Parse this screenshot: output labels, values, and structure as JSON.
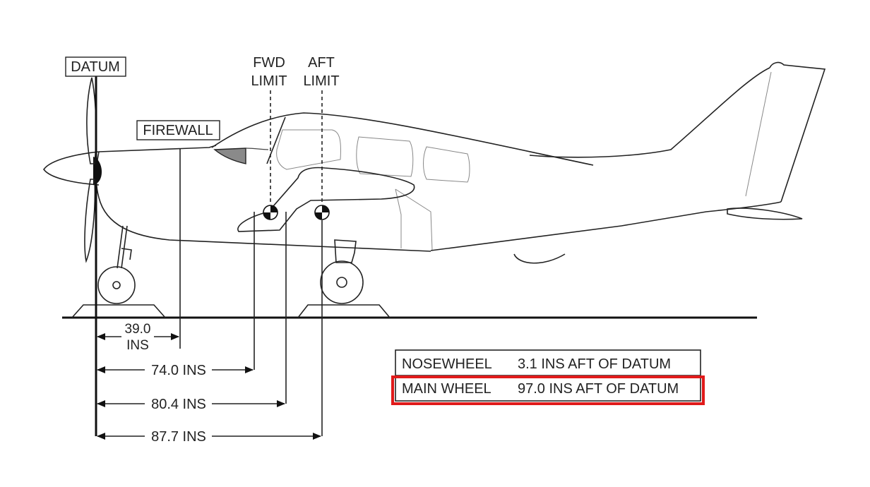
{
  "labels": {
    "datum": "DATUM",
    "firewall": "FIREWALL",
    "fwd_limit_1": "FWD",
    "fwd_limit_2": "LIMIT",
    "aft_limit_1": "AFT",
    "aft_limit_2": "LIMIT"
  },
  "dimensions": {
    "firewall_value": "39.0",
    "firewall_unit": "INS",
    "fwd_limit": "74.0 INS",
    "aft_limit_a": "80.4 INS",
    "aft_limit_b": "87.7 INS"
  },
  "table": {
    "rows": [
      {
        "name": "NOSEWHEEL",
        "value": "3.1 INS AFT OF DATUM"
      },
      {
        "name": "MAIN WHEEL",
        "value": "97.0 INS AFT OF DATUM"
      }
    ],
    "highlight_color": "#e01a1a"
  }
}
